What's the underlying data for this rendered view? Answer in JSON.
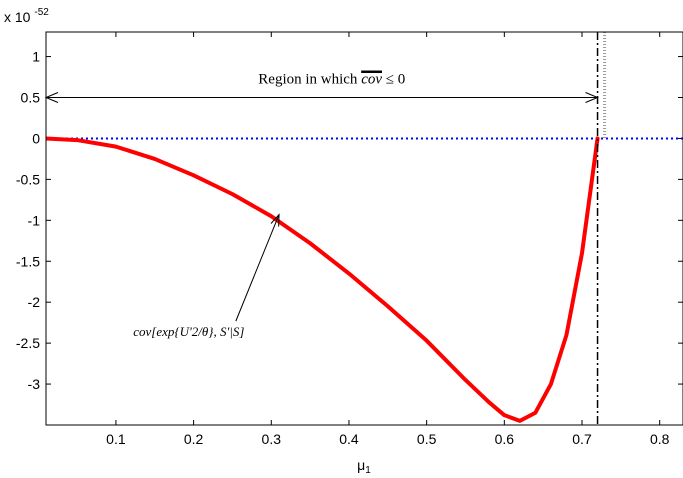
{
  "chart_data": {
    "type": "line",
    "title": "",
    "xlabel": "μ1",
    "ylabel": "",
    "y_multiplier": "x 10-52",
    "y_multiplier_base": "x 10",
    "y_multiplier_exp": "-52",
    "xlim": [
      0.01,
      0.83
    ],
    "ylim": [
      -3.5,
      1.3
    ],
    "grid": false,
    "x_ticks": [
      0.1,
      0.2,
      0.3,
      0.4,
      0.5,
      0.6,
      0.7,
      0.8
    ],
    "x_tick_labels": [
      "0.1",
      "0.2",
      "0.3",
      "0.4",
      "0.5",
      "0.6",
      "0.7",
      "0.8"
    ],
    "y_ticks": [
      1,
      0.5,
      0,
      -0.5,
      -1,
      -1.5,
      -2,
      -2.5,
      -3
    ],
    "y_tick_labels": [
      "1",
      "0.5",
      "0",
      "-0.5",
      "-1",
      "-1.5",
      "-2",
      "-2.5",
      "-3"
    ],
    "series": [
      {
        "name": "",
        "color": "#ff0000",
        "style": "solid",
        "x": [
          0.01,
          0.05,
          0.1,
          0.15,
          0.2,
          0.25,
          0.3,
          0.35,
          0.4,
          0.45,
          0.5,
          0.55,
          0.58,
          0.6,
          0.62,
          0.64,
          0.66,
          0.68,
          0.7,
          0.71,
          0.72
        ],
        "y": [
          0.0,
          -0.02,
          -0.1,
          -0.25,
          -0.45,
          -0.68,
          -0.95,
          -1.28,
          -1.65,
          -2.05,
          -2.47,
          -2.95,
          -3.22,
          -3.38,
          -3.45,
          -3.35,
          -3.0,
          -2.4,
          -1.4,
          -0.7,
          0.0
        ]
      },
      {
        "name": "",
        "color": "#0000ff",
        "style": "dotted",
        "x": [
          0.01,
          0.83
        ],
        "y": [
          0,
          0
        ]
      }
    ],
    "vertical_lines": [
      {
        "x": 0.72,
        "color": "#000000",
        "style": "dash-dot"
      }
    ],
    "annotations": [
      {
        "type": "double-arrow",
        "x_from": 0.01,
        "x_to": 0.72,
        "y": 0.5,
        "label": "Region in which cov ≤ 0",
        "label_prefix": "Region in which ",
        "label_math": "cov",
        "label_suffix": " ≤ 0"
      },
      {
        "type": "arrow",
        "text_x": 0.19,
        "text_y": -2.5,
        "target_x": 0.31,
        "target_y": -0.93,
        "label": "cov[exp{U'2/θ}, S'|S]"
      }
    ]
  }
}
